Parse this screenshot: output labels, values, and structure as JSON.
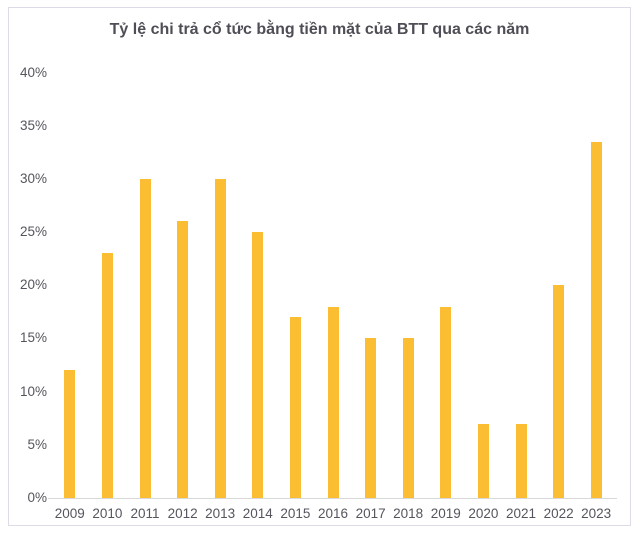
{
  "chart_data": {
    "type": "bar",
    "title": "Tỷ lệ chi trả cổ tức bằng tiền mặt của BTT qua các năm",
    "categories": [
      "2009",
      "2010",
      "2011",
      "2012",
      "2013",
      "2014",
      "2015",
      "2016",
      "2017",
      "2018",
      "2019",
      "2020",
      "2021",
      "2022",
      "2023"
    ],
    "values": [
      12,
      23,
      30,
      26,
      30,
      25,
      17,
      18,
      15,
      15,
      18,
      7,
      7,
      20,
      33.5
    ],
    "xlabel": "",
    "ylabel": "",
    "ylim": [
      0,
      40
    ],
    "ytick_step": 5,
    "ytick_labels": [
      "0%",
      "5%",
      "10%",
      "15%",
      "20%",
      "25%",
      "30%",
      "35%",
      "40%"
    ],
    "grid": false,
    "legend_position": "none",
    "colors": {
      "bar": "#FBBE32",
      "title_text": "#4E4E56",
      "axis_label_text": "#55555E",
      "axis_line": "#D9D9D9",
      "frame_border": "#DCDCE8",
      "background": "#FFFFFF"
    }
  }
}
